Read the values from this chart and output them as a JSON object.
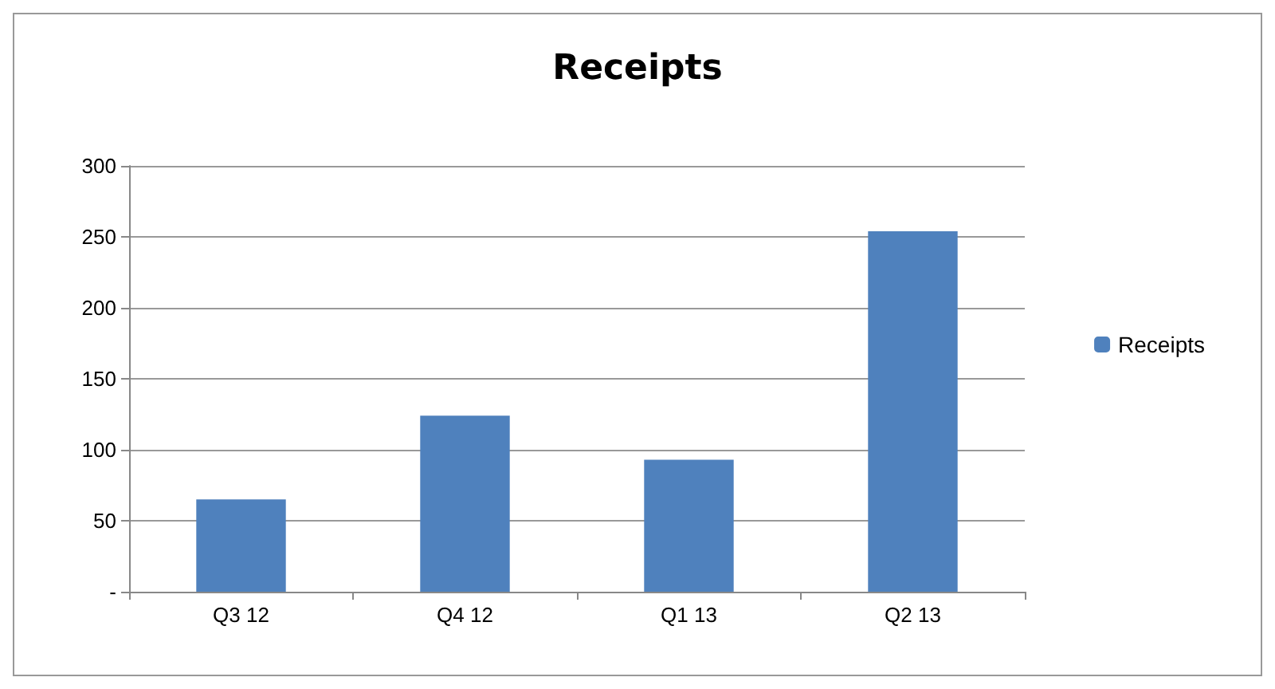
{
  "chart_data": {
    "type": "bar",
    "title": "Receipts",
    "categories": [
      "Q3 12",
      "Q4 12",
      "Q1 13",
      "Q2 13"
    ],
    "series": [
      {
        "name": "Receipts",
        "color": "#4f81bd",
        "values": [
          65,
          124,
          93,
          254
        ]
      }
    ],
    "ylim": [
      0,
      300
    ],
    "yticks": [
      {
        "value": 0,
        "label": "-"
      },
      50,
      100,
      150,
      200,
      250,
      300
    ],
    "grid": "y",
    "legend": "right"
  }
}
